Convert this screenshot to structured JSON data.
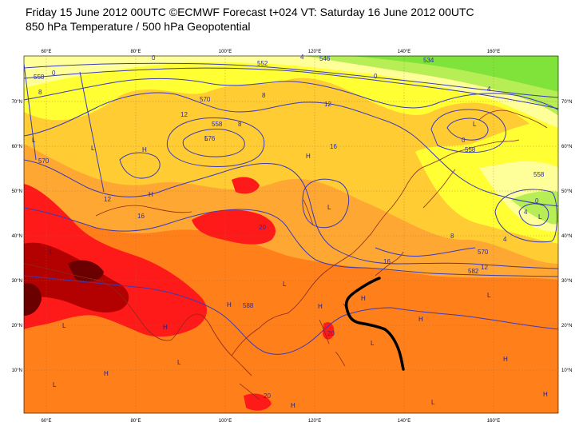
{
  "header": {
    "line1": "Friday 15 June 2012 00UTC ©ECMWF Forecast t+024 VT: Saturday 16 June 2012 00UTC",
    "line2": "850 hPa Temperature / 500 hPa Geopotential"
  },
  "map": {
    "lon_ticks": [
      "60°E",
      "80°E",
      "100°E",
      "120°E",
      "140°E",
      "160°E"
    ],
    "lat_ticks": [
      "70°N",
      "60°N",
      "50°N",
      "40°N",
      "30°N",
      "20°N",
      "10°N"
    ],
    "contour_labels": [
      {
        "id": "c1",
        "text": "0"
      },
      {
        "id": "c2",
        "text": "552"
      },
      {
        "id": "c3",
        "text": "4"
      },
      {
        "id": "c4",
        "text": "546"
      },
      {
        "id": "c5",
        "text": "534"
      },
      {
        "id": "c6",
        "text": "0"
      },
      {
        "id": "c7",
        "text": "558"
      },
      {
        "id": "c8",
        "text": "0"
      },
      {
        "id": "c9",
        "text": "4"
      },
      {
        "id": "c10",
        "text": "8"
      },
      {
        "id": "c11",
        "text": "570"
      },
      {
        "id": "c12",
        "text": "8"
      },
      {
        "id": "c13",
        "text": "12"
      },
      {
        "id": "c14",
        "text": "12"
      },
      {
        "id": "c15",
        "text": "558"
      },
      {
        "id": "c16",
        "text": "8"
      },
      {
        "id": "c17",
        "text": "16"
      },
      {
        "id": "c18",
        "text": "576"
      },
      {
        "id": "c19",
        "text": "570"
      },
      {
        "id": "c20",
        "text": "12"
      },
      {
        "id": "c21",
        "text": "16"
      },
      {
        "id": "c22",
        "text": "20"
      },
      {
        "id": "c23",
        "text": "0"
      },
      {
        "id": "c24",
        "text": "558"
      },
      {
        "id": "c25",
        "text": "558"
      },
      {
        "id": "c26",
        "text": "0"
      },
      {
        "id": "c27",
        "text": "4"
      },
      {
        "id": "c28",
        "text": "8"
      },
      {
        "id": "c29",
        "text": "570"
      },
      {
        "id": "c30",
        "text": "4"
      },
      {
        "id": "c31",
        "text": "582"
      },
      {
        "id": "c32",
        "text": "12"
      },
      {
        "id": "c33",
        "text": "16"
      },
      {
        "id": "c34",
        "text": "588"
      },
      {
        "id": "c35",
        "text": "20"
      },
      {
        "id": "c36",
        "text": "20"
      }
    ],
    "pressure_centers": [
      {
        "id": "p1",
        "text": "L"
      },
      {
        "id": "p2",
        "text": "L"
      },
      {
        "id": "p3",
        "text": "H"
      },
      {
        "id": "p4",
        "text": "L"
      },
      {
        "id": "p5",
        "text": "H"
      },
      {
        "id": "p6",
        "text": "L"
      },
      {
        "id": "p7",
        "text": "L"
      },
      {
        "id": "p8",
        "text": "H"
      },
      {
        "id": "p9",
        "text": "L"
      },
      {
        "id": "p10",
        "text": "L"
      },
      {
        "id": "p11",
        "text": "H"
      },
      {
        "id": "p12",
        "text": "L"
      },
      {
        "id": "p13",
        "text": "H"
      },
      {
        "id": "p14",
        "text": "H"
      },
      {
        "id": "p15",
        "text": "L"
      },
      {
        "id": "p16",
        "text": "H"
      },
      {
        "id": "p17",
        "text": "L"
      },
      {
        "id": "p18",
        "text": "H"
      },
      {
        "id": "p19",
        "text": "L"
      },
      {
        "id": "p20",
        "text": "L"
      },
      {
        "id": "p21",
        "text": "H"
      },
      {
        "id": "p22",
        "text": "H"
      },
      {
        "id": "p23",
        "text": "L"
      },
      {
        "id": "p24",
        "text": "H"
      },
      {
        "id": "p25",
        "text": "L"
      },
      {
        "id": "p26",
        "text": "H"
      }
    ],
    "colors": {
      "green": "#7fe33a",
      "light_green": "#b8ee55",
      "pale_yellow": "#ffff99",
      "yellow": "#ffff33",
      "light_orange": "#ffcc33",
      "orange_mid": "#ffa733",
      "orange": "#ff7f1a",
      "red": "#ff1a1a",
      "dark_red": "#b30000",
      "maroon": "#6b0000",
      "contour": "#2a2aa8",
      "coast": "#8a2a1a",
      "track": "#000000"
    }
  }
}
